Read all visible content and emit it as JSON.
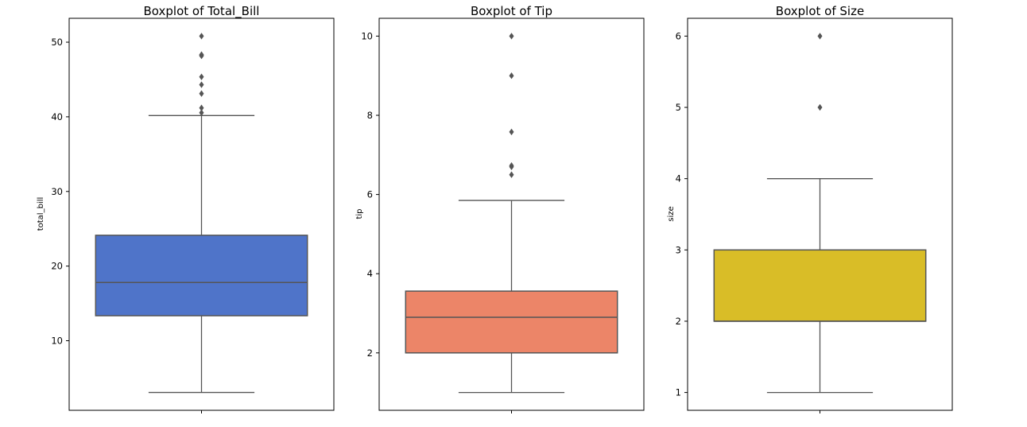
{
  "figure": {
    "background": "#ffffff",
    "line_color": "#555555",
    "axes_edge_color": "#000000"
  },
  "chart_data": [
    {
      "type": "boxplot",
      "title": "Boxplot of Total_Bill",
      "ylabel": "total_bill",
      "yticks": [
        10,
        20,
        30,
        40,
        50
      ],
      "ylim": [
        0.68,
        53.2
      ],
      "box_color": "#4f74c9",
      "stats": {
        "whisker_low": 3.07,
        "q1": 13.35,
        "median": 17.8,
        "q3": 24.13,
        "whisker_high": 40.17,
        "outliers": [
          40.55,
          41.19,
          43.11,
          44.3,
          45.35,
          48.17,
          48.27,
          48.33,
          50.81
        ]
      }
    },
    {
      "type": "boxplot",
      "title": "Boxplot of Tip",
      "ylabel": "tip",
      "yticks": [
        2,
        4,
        6,
        8,
        10
      ],
      "ylim": [
        0.55,
        10.45
      ],
      "box_color": "#ec8568",
      "stats": {
        "whisker_low": 1.0,
        "q1": 2.0,
        "median": 2.9,
        "q3": 3.56,
        "whisker_high": 5.85,
        "outliers": [
          6.5,
          6.7,
          6.73,
          7.58,
          9.0,
          10.0
        ]
      }
    },
    {
      "type": "boxplot",
      "title": "Boxplot of Size",
      "ylabel": "size",
      "yticks": [
        1,
        2,
        3,
        4,
        5,
        6
      ],
      "ylim": [
        0.75,
        6.25
      ],
      "box_color": "#d9bd27",
      "stats": {
        "whisker_low": 1.0,
        "q1": 2.0,
        "median": 2.0,
        "q3": 3.0,
        "whisker_high": 4.0,
        "outliers": [
          5.0,
          6.0
        ]
      }
    }
  ]
}
